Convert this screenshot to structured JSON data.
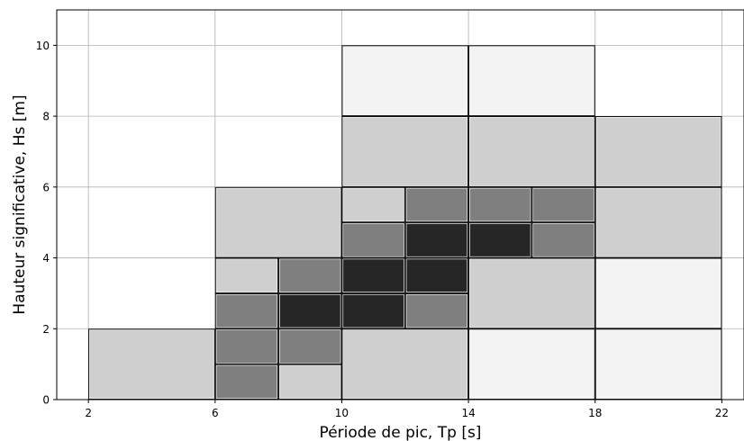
{
  "chart_data": {
    "type": "heatmap",
    "xlabel": "Période de pic, Tp [s]",
    "ylabel": "Hauteur significative, Hs [m]",
    "xlim": [
      1,
      22.7
    ],
    "ylim": [
      0,
      11
    ],
    "xticks": [
      2,
      6,
      10,
      14,
      18,
      22
    ],
    "yticks": [
      0,
      2,
      4,
      6,
      8,
      10
    ],
    "grid": true,
    "shade_colors": {
      "1": "#f3f3f3",
      "2": "#cfcfcf",
      "3": "#7f7f7f",
      "4": "#262626"
    },
    "cells": [
      {
        "x0": 2,
        "x1": 6,
        "y0": 0,
        "y1": 2,
        "level": 2
      },
      {
        "x0": 6,
        "x1": 8,
        "y0": 0,
        "y1": 1,
        "level": 3
      },
      {
        "x0": 8,
        "x1": 10,
        "y0": 0,
        "y1": 1,
        "level": 2
      },
      {
        "x0": 6,
        "x1": 8,
        "y0": 1,
        "y1": 2,
        "level": 3
      },
      {
        "x0": 8,
        "x1": 10,
        "y0": 1,
        "y1": 2,
        "level": 3
      },
      {
        "x0": 10,
        "x1": 14,
        "y0": 0,
        "y1": 2,
        "level": 2
      },
      {
        "x0": 14,
        "x1": 18,
        "y0": 0,
        "y1": 2,
        "level": 1
      },
      {
        "x0": 18,
        "x1": 22,
        "y0": 0,
        "y1": 2,
        "level": 1
      },
      {
        "x0": 6,
        "x1": 8,
        "y0": 2,
        "y1": 3,
        "level": 3
      },
      {
        "x0": 8,
        "x1": 10,
        "y0": 2,
        "y1": 3,
        "level": 4
      },
      {
        "x0": 10,
        "x1": 12,
        "y0": 2,
        "y1": 3,
        "level": 4
      },
      {
        "x0": 12,
        "x1": 14,
        "y0": 2,
        "y1": 3,
        "level": 3
      },
      {
        "x0": 6,
        "x1": 8,
        "y0": 3,
        "y1": 4,
        "level": 2
      },
      {
        "x0": 8,
        "x1": 10,
        "y0": 3,
        "y1": 4,
        "level": 3
      },
      {
        "x0": 10,
        "x1": 12,
        "y0": 3,
        "y1": 4,
        "level": 4
      },
      {
        "x0": 12,
        "x1": 14,
        "y0": 3,
        "y1": 4,
        "level": 4
      },
      {
        "x0": 14,
        "x1": 18,
        "y0": 2,
        "y1": 4,
        "level": 2
      },
      {
        "x0": 18,
        "x1": 22,
        "y0": 2,
        "y1": 4,
        "level": 1
      },
      {
        "x0": 6,
        "x1": 10,
        "y0": 4,
        "y1": 6,
        "level": 2
      },
      {
        "x0": 10,
        "x1": 12,
        "y0": 4,
        "y1": 5,
        "level": 3
      },
      {
        "x0": 12,
        "x1": 14,
        "y0": 4,
        "y1": 5,
        "level": 4
      },
      {
        "x0": 14,
        "x1": 16,
        "y0": 4,
        "y1": 5,
        "level": 4
      },
      {
        "x0": 16,
        "x1": 18,
        "y0": 4,
        "y1": 5,
        "level": 3
      },
      {
        "x0": 10,
        "x1": 12,
        "y0": 5,
        "y1": 6,
        "level": 2
      },
      {
        "x0": 12,
        "x1": 14,
        "y0": 5,
        "y1": 6,
        "level": 3
      },
      {
        "x0": 14,
        "x1": 16,
        "y0": 5,
        "y1": 6,
        "level": 3
      },
      {
        "x0": 16,
        "x1": 18,
        "y0": 5,
        "y1": 6,
        "level": 3
      },
      {
        "x0": 18,
        "x1": 22,
        "y0": 4,
        "y1": 6,
        "level": 2
      },
      {
        "x0": 10,
        "x1": 14,
        "y0": 6,
        "y1": 8,
        "level": 2
      },
      {
        "x0": 14,
        "x1": 18,
        "y0": 6,
        "y1": 8,
        "level": 2
      },
      {
        "x0": 18,
        "x1": 22,
        "y0": 6,
        "y1": 8,
        "level": 2
      },
      {
        "x0": 10,
        "x1": 14,
        "y0": 8,
        "y1": 10,
        "level": 1
      },
      {
        "x0": 14,
        "x1": 18,
        "y0": 8,
        "y1": 10,
        "level": 1
      }
    ]
  }
}
